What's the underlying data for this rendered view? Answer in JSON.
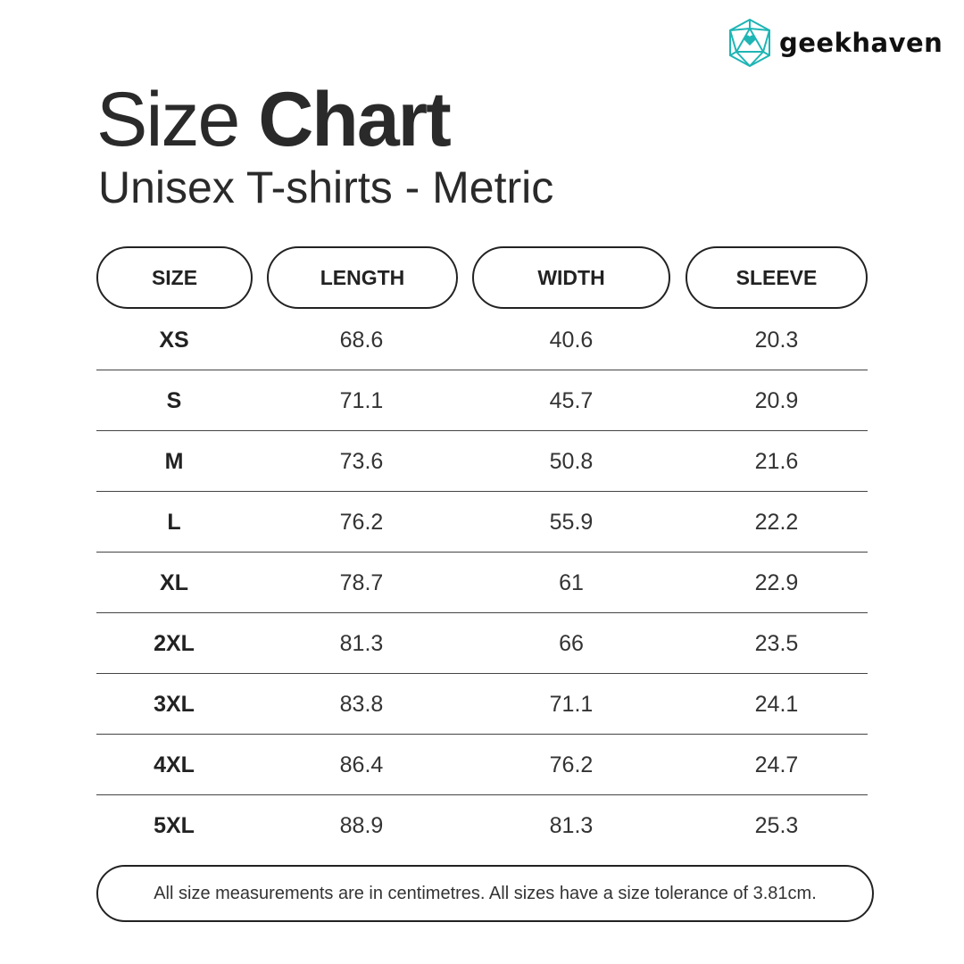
{
  "brand": {
    "name": "geekhaven",
    "logo_color": "#1fb5b5"
  },
  "title": {
    "light": "Size",
    "bold": "Chart"
  },
  "subtitle": "Unisex T-shirts - Metric",
  "table": {
    "headers": [
      "SIZE",
      "LENGTH",
      "WIDTH",
      "SLEEVE"
    ],
    "rows": [
      [
        "XS",
        "68.6",
        "40.6",
        "20.3"
      ],
      [
        "S",
        "71.1",
        "45.7",
        "20.9"
      ],
      [
        "M",
        "73.6",
        "50.8",
        "21.6"
      ],
      [
        "L",
        "76.2",
        "55.9",
        "22.2"
      ],
      [
        "XL",
        "78.7",
        "61",
        "22.9"
      ],
      [
        "2XL",
        "81.3",
        "66",
        "23.5"
      ],
      [
        "3XL",
        "83.8",
        "71.1",
        "24.1"
      ],
      [
        "4XL",
        "86.4",
        "76.2",
        "24.7"
      ],
      [
        "5XL",
        "88.9",
        "81.3",
        "25.3"
      ]
    ]
  },
  "footer": "All size measurements are in centimetres. All sizes have a size tolerance of 3.81cm."
}
